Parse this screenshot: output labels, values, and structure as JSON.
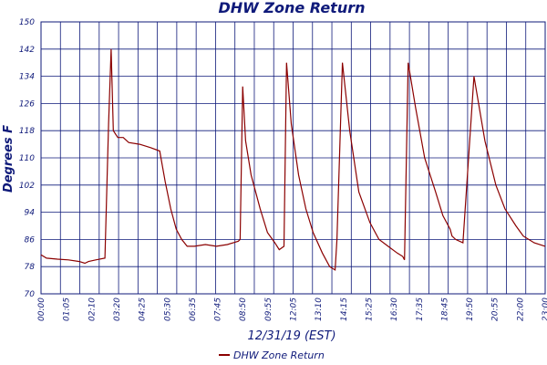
{
  "chart_data": {
    "type": "line",
    "title": "DHW Zone Return",
    "xlabel": "12/31/19 (EST)",
    "ylabel": "Degrees F",
    "ylim": [
      70,
      150
    ],
    "y_ticks": [
      "70",
      "78",
      "86",
      "94",
      "102",
      "110",
      "118",
      "126",
      "134",
      "142",
      "150"
    ],
    "x_tick_labels": [
      "00:00",
      "01:05",
      "02:10",
      "03:20",
      "04:25",
      "05:30",
      "06:35",
      "07:45",
      "08:50",
      "09:55",
      "12:05",
      "13:10",
      "14:15",
      "15:25",
      "16:30",
      "17:35",
      "18:45",
      "19:50",
      "20:55",
      "22:00",
      "23:00"
    ],
    "grid": true,
    "legend_position": "bottom",
    "colors": {
      "series": "#8b0000",
      "grid": "#0f1a7a",
      "text": "#0f1a7a"
    },
    "series": [
      {
        "name": "DHW Zone Return",
        "x": [
          "00:00",
          "00:15",
          "00:45",
          "01:15",
          "01:45",
          "02:00",
          "02:10",
          "02:30",
          "02:55",
          "03:05",
          "03:12",
          "03:18",
          "03:30",
          "03:45",
          "04:00",
          "04:30",
          "05:00",
          "05:25",
          "05:40",
          "05:55",
          "06:10",
          "06:25",
          "06:40",
          "07:00",
          "07:30",
          "08:00",
          "08:30",
          "09:00",
          "09:05",
          "09:12",
          "09:20",
          "09:35",
          "10:00",
          "10:20",
          "10:40",
          "10:52",
          "11:05",
          "11:12",
          "11:25",
          "11:45",
          "12:05",
          "12:25",
          "12:50",
          "13:10",
          "13:25",
          "13:30",
          "13:45",
          "14:05",
          "14:30",
          "15:00",
          "15:25",
          "15:50",
          "16:15",
          "16:30",
          "16:35",
          "16:45",
          "17:05",
          "17:30",
          "18:00",
          "18:20",
          "18:40",
          "18:45",
          "18:55",
          "19:15",
          "19:45",
          "20:15",
          "20:45",
          "21:10",
          "21:40",
          "22:00",
          "22:30",
          "23:00"
        ],
        "y": [
          81.5,
          80.5,
          80.2,
          80,
          79.5,
          79,
          79.5,
          80,
          80.5,
          120,
          142,
          118,
          116,
          116,
          114.5,
          114,
          113,
          112,
          103,
          95,
          89,
          86,
          84,
          84,
          84.5,
          84,
          84.5,
          85.5,
          86,
          131,
          115,
          105,
          95,
          88,
          85,
          83,
          84,
          138,
          120,
          105,
          95,
          88,
          82,
          78,
          77,
          86,
          138,
          118,
          100,
          91,
          86,
          84,
          82,
          81,
          80,
          138,
          125,
          110,
          100,
          93,
          89,
          87,
          86,
          85,
          134,
          115,
          102,
          95,
          90,
          87,
          85,
          84
        ]
      }
    ]
  },
  "legend": {
    "label": "DHW Zone Return"
  }
}
